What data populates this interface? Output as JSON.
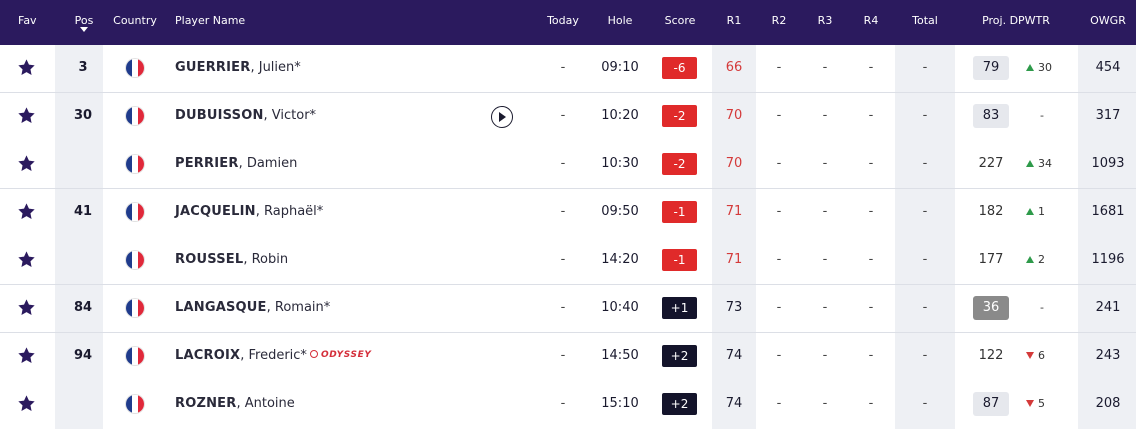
{
  "header": {
    "fav": "Fav",
    "pos": "Pos",
    "country": "Country",
    "player_name": "Player Name",
    "today": "Today",
    "hole": "Hole",
    "score": "Score",
    "r1": "R1",
    "r2": "R2",
    "r3": "R3",
    "r4": "R4",
    "total": "Total",
    "proj": "Proj. DPWTR",
    "owgr": "OWGR"
  },
  "colors": {
    "header_bg": "#2b1a5e",
    "star": "#2b1a5e",
    "under_par": "#e02a2a",
    "over_par": "#14142b",
    "move_up": "#2e9a4a",
    "move_down": "#d43a3a"
  },
  "rows": [
    {
      "pos": "3",
      "country": "France",
      "last": "GUERRIER",
      "first": ", Julien*",
      "today": "-",
      "hole": "09:10",
      "score": "-6",
      "r1": "66",
      "r2": "-",
      "r3": "-",
      "r4": "-",
      "total": "-",
      "proj": "79",
      "move": "30",
      "move_dir": "up",
      "owgr": "454"
    },
    {
      "pos": "30",
      "country": "France",
      "last": "DUBUISSON",
      "first": ", Victor*",
      "today": "-",
      "hole": "10:20",
      "score": "-2",
      "r1": "70",
      "r2": "-",
      "r3": "-",
      "r4": "-",
      "total": "-",
      "proj": "83",
      "move": "-",
      "move_dir": "none",
      "owgr": "317",
      "icon": "play-icon"
    },
    {
      "pos": "",
      "country": "France",
      "last": "PERRIER",
      "first": ", Damien",
      "today": "-",
      "hole": "10:30",
      "score": "-2",
      "r1": "70",
      "r2": "-",
      "r3": "-",
      "r4": "-",
      "total": "-",
      "proj": "227",
      "move": "34",
      "move_dir": "up",
      "owgr": "1093"
    },
    {
      "pos": "41",
      "country": "France",
      "last": "JACQUELIN",
      "first": ", Raphaël*",
      "today": "-",
      "hole": "09:50",
      "score": "-1",
      "r1": "71",
      "r2": "-",
      "r3": "-",
      "r4": "-",
      "total": "-",
      "proj": "182",
      "move": "1",
      "move_dir": "up",
      "owgr": "1681"
    },
    {
      "pos": "",
      "country": "France",
      "last": "ROUSSEL",
      "first": ", Robin",
      "today": "-",
      "hole": "14:20",
      "score": "-1",
      "r1": "71",
      "r2": "-",
      "r3": "-",
      "r4": "-",
      "total": "-",
      "proj": "177",
      "move": "2",
      "move_dir": "up",
      "owgr": "1196"
    },
    {
      "pos": "84",
      "country": "France",
      "last": "LANGASQUE",
      "first": ", Romain*",
      "today": "-",
      "hole": "10:40",
      "score": "+1",
      "r1": "73",
      "r2": "-",
      "r3": "-",
      "r4": "-",
      "total": "-",
      "proj": "36",
      "move": "-",
      "move_dir": "none",
      "owgr": "241"
    },
    {
      "pos": "94",
      "country": "France",
      "last": "LACROIX",
      "first": ", Frederic*",
      "today": "-",
      "hole": "14:50",
      "score": "+2",
      "r1": "74",
      "r2": "-",
      "r3": "-",
      "r4": "-",
      "total": "-",
      "proj": "122",
      "move": "6",
      "move_dir": "down",
      "owgr": "243",
      "sponsor": "ODYSSEY"
    },
    {
      "pos": "",
      "country": "France",
      "last": "ROZNER",
      "first": ", Antoine",
      "today": "-",
      "hole": "15:10",
      "score": "+2",
      "r1": "74",
      "r2": "-",
      "r3": "-",
      "r4": "-",
      "total": "-",
      "proj": "87",
      "move": "5",
      "move_dir": "down",
      "owgr": "208"
    }
  ]
}
